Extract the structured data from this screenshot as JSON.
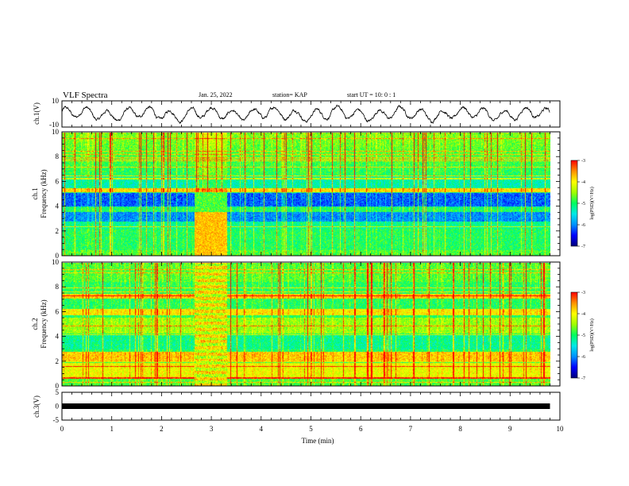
{
  "header": {
    "title": "VLF Spectra",
    "date": "Jan. 25, 2022",
    "station": "station= KAP",
    "start_ut": "start UT =   10: 0  : 1"
  },
  "chart_data": [
    {
      "type": "line",
      "name": "ch1-waveform",
      "ylabel": "ch.1(V)",
      "ylim": [
        -10,
        10
      ],
      "yticks": [
        10,
        -10
      ],
      "xlim": [
        0,
        10
      ],
      "description_series": "noisy oscillating voltage trace around 0 V, amplitude roughly 3-8 V, period ~0.4 min"
    },
    {
      "type": "heatmap",
      "name": "ch1-spectrogram",
      "ylabel": "ch.1\nFrequency (kHz)",
      "ylabel_line1": "ch.1",
      "ylabel_line2": "Frequency (kHz)",
      "ylim": [
        0,
        10
      ],
      "yticks": [
        0,
        2,
        4,
        6,
        8,
        10
      ],
      "xlim": [
        0,
        10
      ],
      "xlim_data": [
        0,
        9.8
      ],
      "interference_interval": [
        2.65,
        3.3
      ],
      "colorbar": {
        "label": "log(PSD)(V²/Hz)",
        "range": [
          -7,
          -3
        ],
        "ticks": [
          -3,
          -4,
          -5,
          -6,
          -7
        ]
      }
    },
    {
      "type": "heatmap",
      "name": "ch2-spectrogram",
      "ylabel": "ch.2\nFrequency (kHz)",
      "ylabel_line1": "ch.2",
      "ylabel_line2": "Frequency (kHz)",
      "ylim": [
        0,
        10
      ],
      "yticks": [
        0,
        2,
        4,
        6,
        8,
        10
      ],
      "xlim": [
        0,
        10
      ],
      "xlim_data": [
        0,
        9.8
      ],
      "interference_interval": [
        2.65,
        3.3
      ],
      "colorbar": {
        "label": "log(PSD)(V²/Hz)",
        "range": [
          -7,
          -3
        ],
        "ticks": [
          -3,
          -4,
          -5,
          -6,
          -7
        ]
      }
    },
    {
      "type": "line",
      "name": "ch3-waveform",
      "ylabel": "ch.3(V)",
      "ylim": [
        -5,
        5
      ],
      "yticks": [
        5,
        0,
        -5
      ],
      "xlim": [
        0,
        10
      ],
      "xlabel": "Time (min)",
      "xticks": [
        0,
        1,
        2,
        3,
        4,
        5,
        6,
        7,
        8,
        9,
        10
      ],
      "description_series": "saturated signal forming a solid black band between approximately -1 and +1 V"
    }
  ],
  "colormap": [
    "#00007a",
    "#0000ff",
    "#0090ff",
    "#00e8e8",
    "#00ff60",
    "#a0ff00",
    "#ffff00",
    "#ff9000",
    "#ff0000",
    "#ffffff"
  ]
}
